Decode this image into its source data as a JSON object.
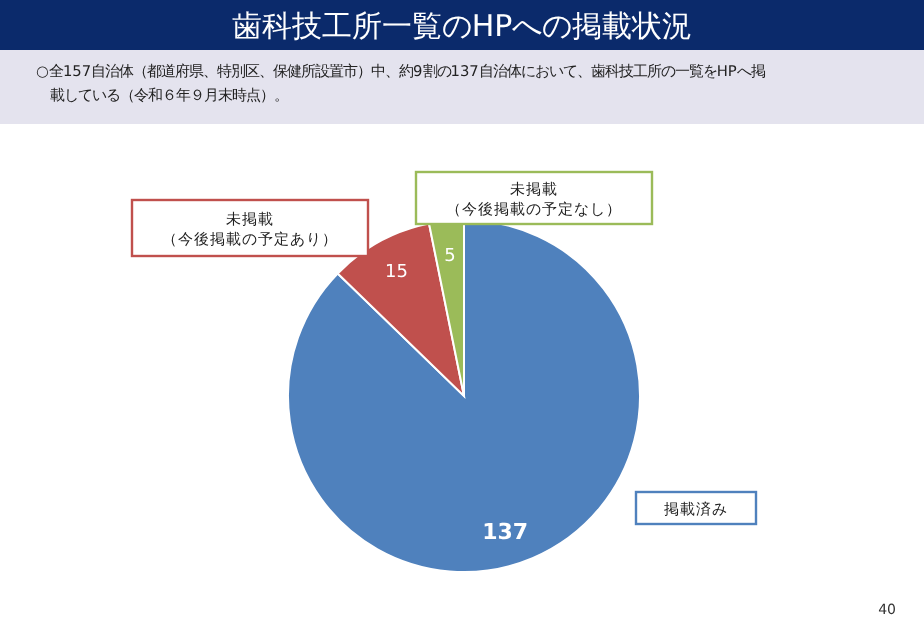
{
  "chart_data": {
    "type": "pie",
    "title": "歯科技工所一覧のHPへの掲載状況",
    "subtitle": "○全157自治体（都道府県、特別区、保健所設置市）中、約9割の137自治体において、歯科技工所の一覧をHPへ掲載している（令和６年９月末時点）。",
    "categories": [
      "掲載済み",
      "未掲載（今後掲載の予定あり）",
      "未掲載（今後掲載の予定なし）"
    ],
    "values": [
      137,
      15,
      5
    ],
    "colors": [
      "#4f81bd",
      "#c0504d",
      "#9bbb59"
    ],
    "data_labels": true,
    "annotations": [
      "40"
    ]
  }
}
